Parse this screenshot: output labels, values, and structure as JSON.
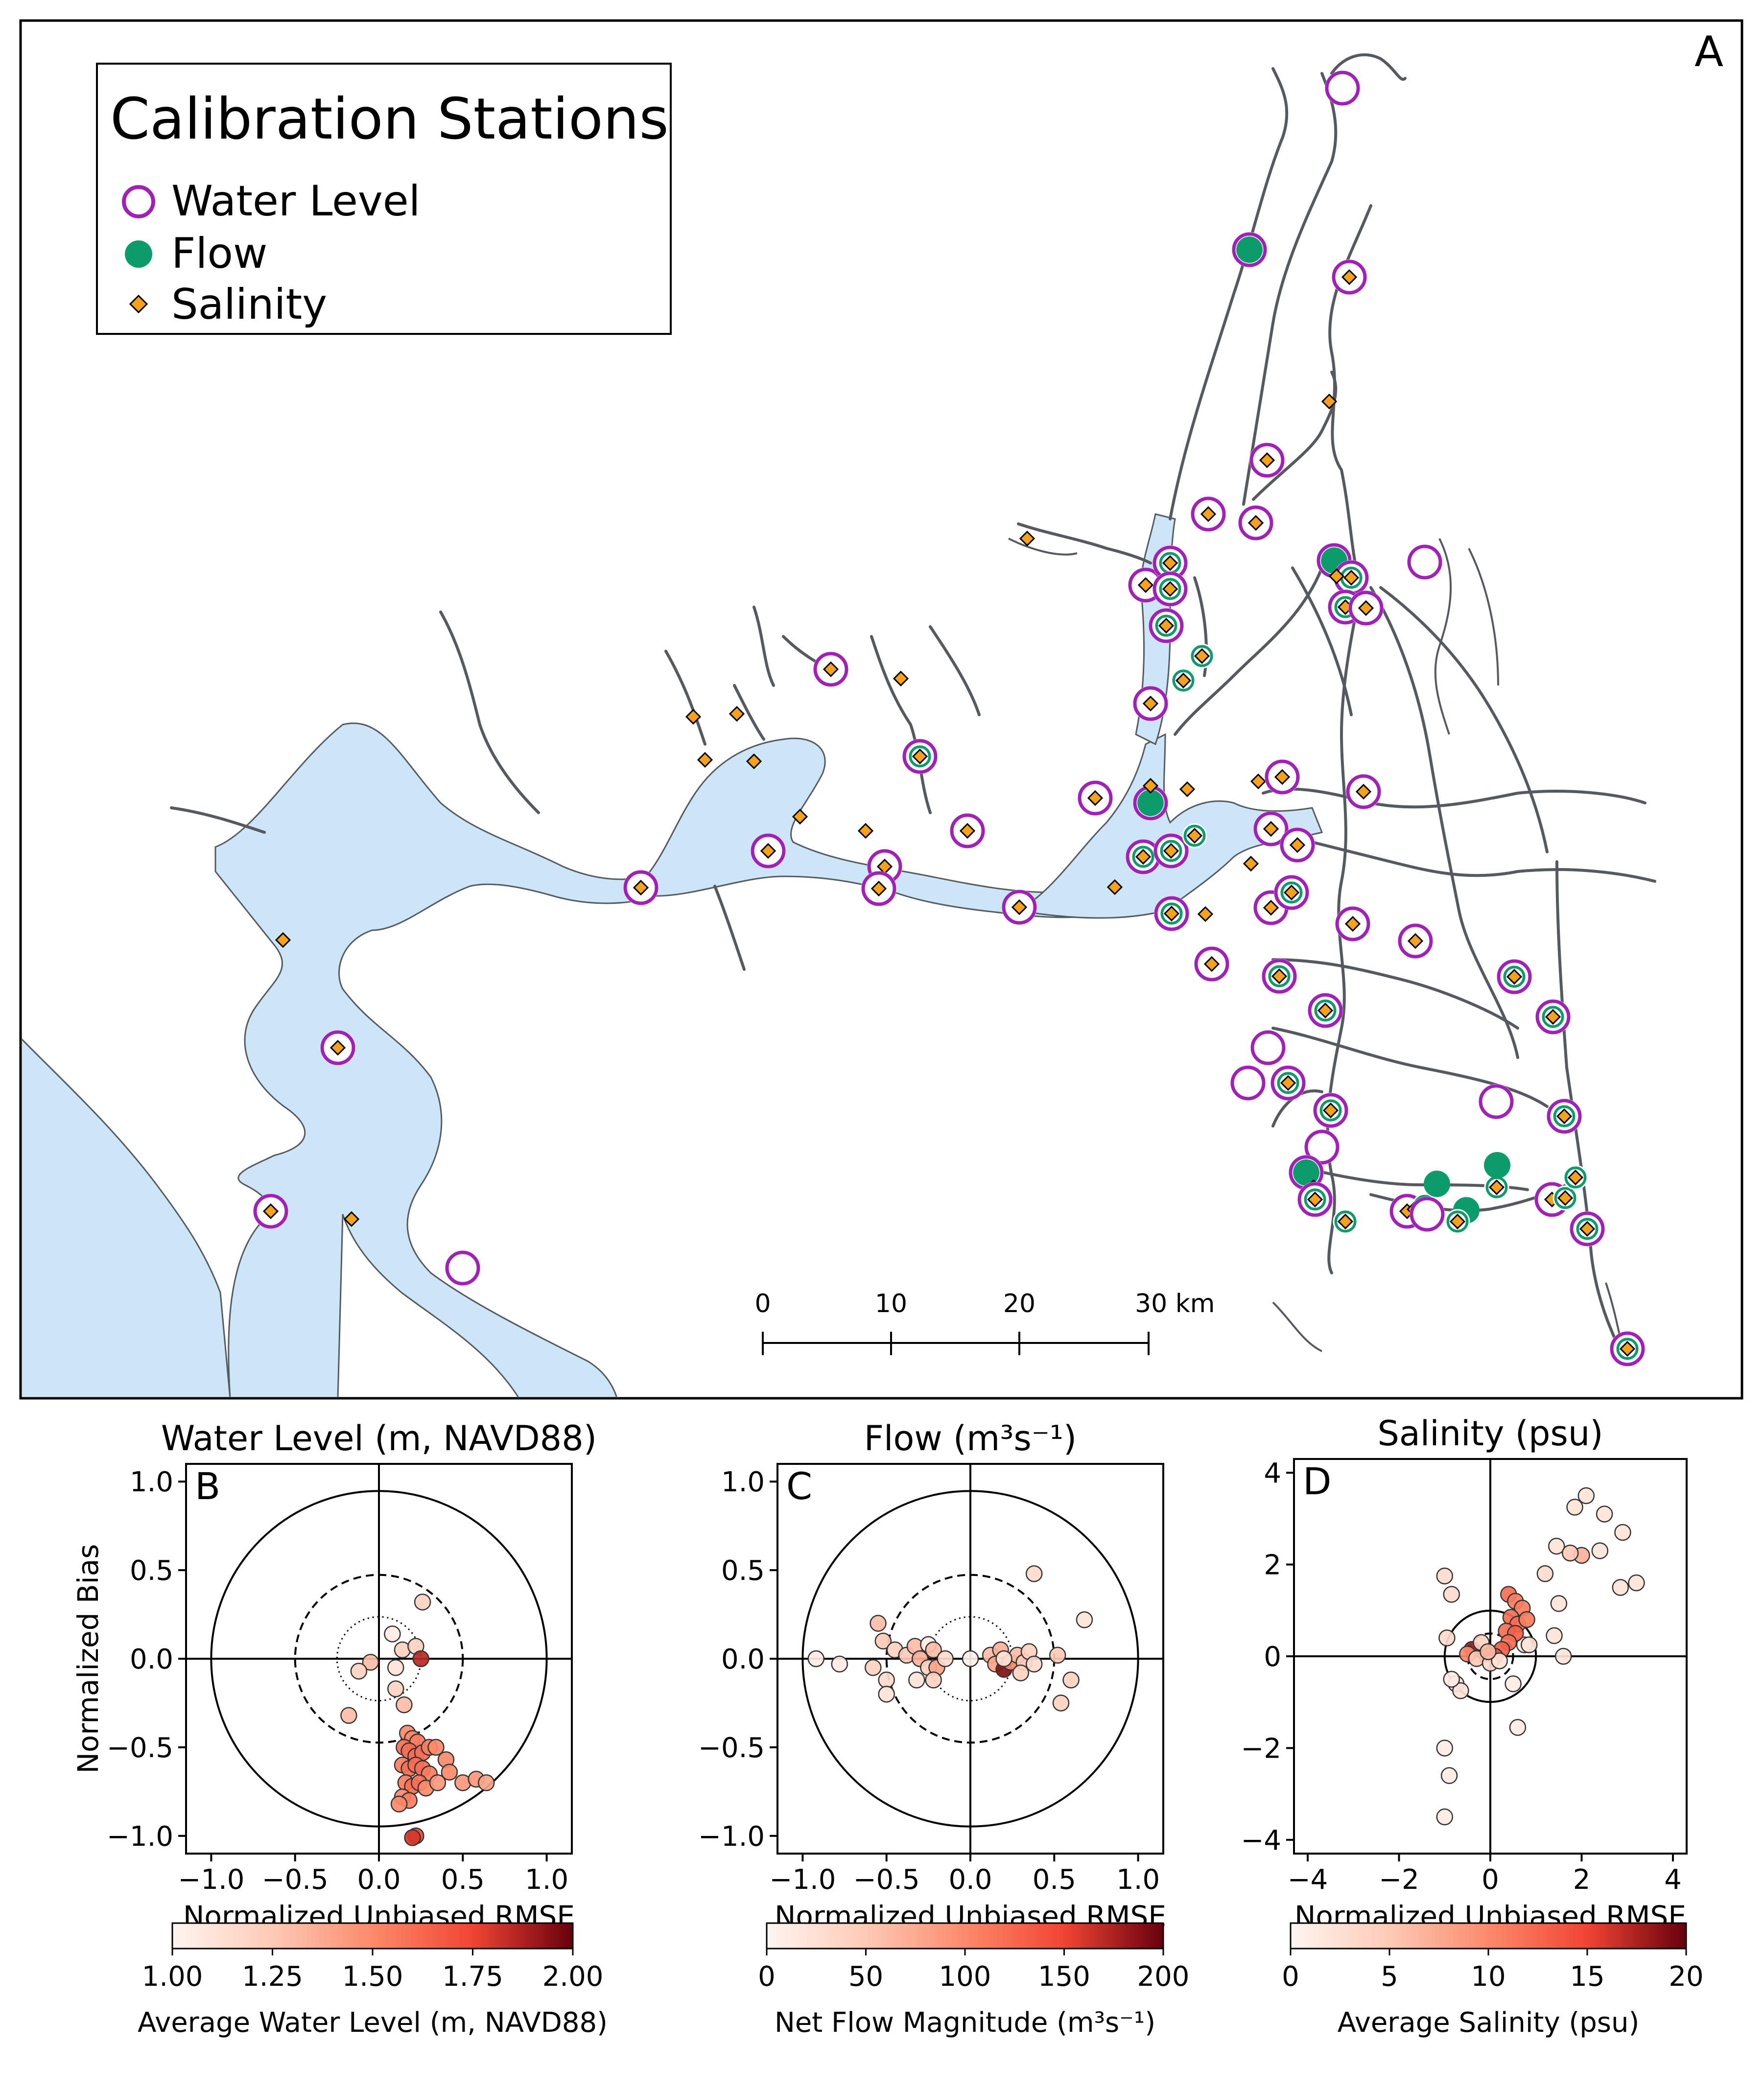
{
  "map": {
    "panel_label": "A",
    "legend": {
      "title": "Calibration Stations",
      "items": [
        {
          "label": "Water Level",
          "marker": "open-circle",
          "color": "#a020b8"
        },
        {
          "label": "Flow",
          "marker": "filled-circle",
          "color": "#0c9c6c"
        },
        {
          "label": "Salinity",
          "marker": "diamond",
          "color": "#f5a11a"
        }
      ]
    },
    "scalebar": {
      "ticks": [
        "0",
        "10",
        "20",
        "30 km"
      ]
    },
    "colors": {
      "water": "#cce6f8",
      "channel": "#555a60",
      "frame": "#000000"
    }
  },
  "chart_data": [
    {
      "type": "scatter",
      "panel_label": "B",
      "title": "Water Level (m, NAVD88)",
      "xlabel": "Normalized Unbiased RMSE",
      "ylabel": "Normalized Bias",
      "xlim": [
        -1.15,
        1.15
      ],
      "ylim": [
        -1.1,
        1.1
      ],
      "xticks": [
        "−1.0",
        "−0.5",
        "0.0",
        "0.5",
        "1.0"
      ],
      "yticks": [
        "1.0",
        "0.5",
        "0.0",
        "−0.5",
        "−1.0"
      ],
      "reference_circles": {
        "solid": 1.0,
        "dashed": 0.5,
        "dotted": 0.25
      },
      "colorbar": {
        "label": "Average Water Level (m, NAVD88)",
        "range": [
          1.0,
          2.0
        ],
        "ticks": [
          "1.00",
          "1.25",
          "1.50",
          "1.75",
          "2.00"
        ]
      },
      "points": [
        {
          "x": 0.08,
          "y": 0.14,
          "c": 1.05
        },
        {
          "x": 0.26,
          "y": 0.32,
          "c": 1.2
        },
        {
          "x": 0.14,
          "y": 0.05,
          "c": 1.2
        },
        {
          "x": 0.22,
          "y": 0.07,
          "c": 1.2
        },
        {
          "x": -0.05,
          "y": -0.02,
          "c": 1.3
        },
        {
          "x": -0.12,
          "y": -0.07,
          "c": 1.2
        },
        {
          "x": -0.18,
          "y": -0.32,
          "c": 1.3
        },
        {
          "x": 0.1,
          "y": -0.05,
          "c": 1.1
        },
        {
          "x": 0.25,
          "y": 0.0,
          "c": 1.85
        },
        {
          "x": 0.1,
          "y": -0.17,
          "c": 1.2
        },
        {
          "x": 0.15,
          "y": -0.26,
          "c": 1.3
        },
        {
          "x": 0.17,
          "y": -0.42,
          "c": 1.5
        },
        {
          "x": 0.2,
          "y": -0.45,
          "c": 1.5
        },
        {
          "x": 0.23,
          "y": -0.47,
          "c": 1.55
        },
        {
          "x": 0.15,
          "y": -0.5,
          "c": 1.6
        },
        {
          "x": 0.18,
          "y": -0.52,
          "c": 1.6
        },
        {
          "x": 0.22,
          "y": -0.55,
          "c": 1.6
        },
        {
          "x": 0.26,
          "y": -0.53,
          "c": 1.6
        },
        {
          "x": 0.3,
          "y": -0.5,
          "c": 1.55
        },
        {
          "x": 0.34,
          "y": -0.5,
          "c": 1.5
        },
        {
          "x": 0.14,
          "y": -0.6,
          "c": 1.55
        },
        {
          "x": 0.18,
          "y": -0.62,
          "c": 1.6
        },
        {
          "x": 0.22,
          "y": -0.6,
          "c": 1.6
        },
        {
          "x": 0.26,
          "y": -0.62,
          "c": 1.6
        },
        {
          "x": 0.3,
          "y": -0.65,
          "c": 1.55
        },
        {
          "x": 0.4,
          "y": -0.57,
          "c": 1.5
        },
        {
          "x": 0.42,
          "y": -0.64,
          "c": 1.5
        },
        {
          "x": 0.16,
          "y": -0.7,
          "c": 1.55
        },
        {
          "x": 0.2,
          "y": -0.72,
          "c": 1.6
        },
        {
          "x": 0.24,
          "y": -0.7,
          "c": 1.6
        },
        {
          "x": 0.28,
          "y": -0.73,
          "c": 1.5
        },
        {
          "x": 0.14,
          "y": -0.78,
          "c": 1.5
        },
        {
          "x": 0.18,
          "y": -0.8,
          "c": 1.55
        },
        {
          "x": 0.12,
          "y": -0.82,
          "c": 1.5
        },
        {
          "x": 0.35,
          "y": -0.7,
          "c": 1.45
        },
        {
          "x": 0.5,
          "y": -0.7,
          "c": 1.45
        },
        {
          "x": 0.58,
          "y": -0.68,
          "c": 1.45
        },
        {
          "x": 0.64,
          "y": -0.7,
          "c": 1.4
        },
        {
          "x": 0.22,
          "y": -1.0,
          "c": 1.75
        },
        {
          "x": 0.2,
          "y": -1.01,
          "c": 1.8
        }
      ]
    },
    {
      "type": "scatter",
      "panel_label": "C",
      "title": "Flow (m³s⁻¹)",
      "xlabel": "Normalized Unbiased RMSE",
      "ylabel": "",
      "xlim": [
        -1.15,
        1.15
      ],
      "ylim": [
        -1.1,
        1.1
      ],
      "xticks": [
        "−1.0",
        "−0.5",
        "0.0",
        "0.5",
        "1.0"
      ],
      "yticks": [
        "1.0",
        "0.5",
        "0.0",
        "−0.5",
        "−1.0"
      ],
      "reference_circles": {
        "solid": 1.0,
        "dashed": 0.5,
        "dotted": 0.25
      },
      "colorbar": {
        "label": "Net Flow Magnitude (m³s⁻¹)",
        "range": [
          0,
          200
        ],
        "ticks": [
          "0",
          "50",
          "100",
          "150",
          "200"
        ]
      },
      "points": [
        {
          "x": -0.92,
          "y": 0.0,
          "c": 10
        },
        {
          "x": -0.78,
          "y": -0.03,
          "c": 10
        },
        {
          "x": -0.55,
          "y": 0.2,
          "c": 60
        },
        {
          "x": -0.52,
          "y": 0.1,
          "c": 50
        },
        {
          "x": -0.58,
          "y": -0.05,
          "c": 40
        },
        {
          "x": -0.5,
          "y": -0.12,
          "c": 30
        },
        {
          "x": -0.5,
          "y": -0.2,
          "c": 20
        },
        {
          "x": -0.45,
          "y": 0.05,
          "c": 40
        },
        {
          "x": -0.38,
          "y": 0.02,
          "c": 50
        },
        {
          "x": -0.33,
          "y": 0.07,
          "c": 60
        },
        {
          "x": -0.3,
          "y": 0.0,
          "c": 70
        },
        {
          "x": -0.25,
          "y": 0.08,
          "c": 10
        },
        {
          "x": -0.25,
          "y": -0.05,
          "c": 40
        },
        {
          "x": -0.22,
          "y": 0.05,
          "c": 60
        },
        {
          "x": -0.2,
          "y": -0.05,
          "c": 80
        },
        {
          "x": -0.15,
          "y": 0.0,
          "c": 30
        },
        {
          "x": -0.32,
          "y": -0.12,
          "c": 20
        },
        {
          "x": -0.22,
          "y": -0.12,
          "c": 40
        },
        {
          "x": 0.0,
          "y": 0.0,
          "c": 5
        },
        {
          "x": 0.12,
          "y": 0.02,
          "c": 60
        },
        {
          "x": 0.15,
          "y": -0.03,
          "c": 80
        },
        {
          "x": 0.2,
          "y": -0.06,
          "c": 190
        },
        {
          "x": 0.24,
          "y": -0.02,
          "c": 100
        },
        {
          "x": 0.18,
          "y": 0.05,
          "c": 70
        },
        {
          "x": 0.28,
          "y": 0.02,
          "c": 60
        },
        {
          "x": 0.32,
          "y": -0.02,
          "c": 50
        },
        {
          "x": 0.35,
          "y": 0.04,
          "c": 40
        },
        {
          "x": 0.38,
          "y": -0.03,
          "c": 30
        },
        {
          "x": 0.3,
          "y": -0.08,
          "c": 40
        },
        {
          "x": 0.38,
          "y": 0.48,
          "c": 30
        },
        {
          "x": 0.52,
          "y": 0.02,
          "c": 50
        },
        {
          "x": 0.6,
          "y": -0.12,
          "c": 40
        },
        {
          "x": 0.68,
          "y": 0.22,
          "c": 20
        },
        {
          "x": 0.54,
          "y": -0.25,
          "c": 40
        },
        {
          "x": 0.2,
          "y": 0.0,
          "c": 20
        }
      ]
    },
    {
      "type": "scatter",
      "panel_label": "D",
      "title": "Salinity (psu)",
      "xlabel": "Normalized Unbiased RMSE",
      "ylabel": "",
      "xlim": [
        -4.3,
        4.3
      ],
      "ylim": [
        -4.3,
        4.3
      ],
      "xticks": [
        "−4",
        "−2",
        "0",
        "2",
        "4"
      ],
      "yticks": [
        "4",
        "2",
        "0",
        "−2",
        "−4"
      ],
      "reference_circles": {
        "solid": 1.0,
        "dashed": 0.5,
        "dotted": 0.25
      },
      "colorbar": {
        "label": "Average Salinity (psu)",
        "range": [
          0,
          20
        ],
        "ticks": [
          "0",
          "5",
          "10",
          "15",
          "20"
        ]
      },
      "points": [
        {
          "x": -1.0,
          "y": 1.75,
          "c": 3
        },
        {
          "x": -0.85,
          "y": 1.35,
          "c": 3
        },
        {
          "x": -0.95,
          "y": 0.4,
          "c": 3
        },
        {
          "x": -0.75,
          "y": -0.6,
          "c": 2
        },
        {
          "x": -0.65,
          "y": -0.75,
          "c": 2
        },
        {
          "x": -0.85,
          "y": -0.5,
          "c": 1
        },
        {
          "x": -1.0,
          "y": -2.0,
          "c": 1
        },
        {
          "x": -0.9,
          "y": -2.6,
          "c": 1
        },
        {
          "x": -1.0,
          "y": -3.5,
          "c": 1
        },
        {
          "x": 0.6,
          "y": -1.55,
          "c": 1
        },
        {
          "x": 0.75,
          "y": 0.25,
          "c": 1
        },
        {
          "x": 1.6,
          "y": 0.0,
          "c": 2
        },
        {
          "x": 1.4,
          "y": 0.45,
          "c": 2
        },
        {
          "x": 1.5,
          "y": 1.15,
          "c": 2
        },
        {
          "x": 1.2,
          "y": 1.8,
          "c": 3
        },
        {
          "x": 1.45,
          "y": 2.4,
          "c": 2
        },
        {
          "x": 2.1,
          "y": 3.5,
          "c": 2
        },
        {
          "x": 1.85,
          "y": 3.25,
          "c": 2
        },
        {
          "x": 2.5,
          "y": 3.1,
          "c": 2
        },
        {
          "x": 2.4,
          "y": 2.3,
          "c": 2
        },
        {
          "x": 2.0,
          "y": 2.2,
          "c": 7
        },
        {
          "x": 1.75,
          "y": 2.25,
          "c": 5
        },
        {
          "x": 2.9,
          "y": 2.7,
          "c": 2
        },
        {
          "x": 2.85,
          "y": 1.5,
          "c": 2
        },
        {
          "x": 3.2,
          "y": 1.6,
          "c": 2
        },
        {
          "x": 0.4,
          "y": 1.35,
          "c": 12
        },
        {
          "x": 0.55,
          "y": 1.2,
          "c": 11
        },
        {
          "x": 0.7,
          "y": 1.05,
          "c": 11
        },
        {
          "x": 0.45,
          "y": 0.85,
          "c": 12
        },
        {
          "x": 0.6,
          "y": 0.7,
          "c": 12
        },
        {
          "x": 0.8,
          "y": 0.8,
          "c": 11
        },
        {
          "x": 0.35,
          "y": 0.55,
          "c": 12
        },
        {
          "x": 0.55,
          "y": 0.5,
          "c": 13
        },
        {
          "x": 0.4,
          "y": 0.3,
          "c": 12
        },
        {
          "x": 0.25,
          "y": 0.15,
          "c": 13
        },
        {
          "x": 0.1,
          "y": 0.0,
          "c": 14
        },
        {
          "x": -0.1,
          "y": 0.05,
          "c": 15
        },
        {
          "x": -0.4,
          "y": 0.15,
          "c": 18
        },
        {
          "x": -0.5,
          "y": 0.05,
          "c": 10
        },
        {
          "x": -0.3,
          "y": -0.05,
          "c": 5
        },
        {
          "x": 0.0,
          "y": -0.15,
          "c": 3
        },
        {
          "x": 0.2,
          "y": -0.1,
          "c": 2
        },
        {
          "x": -0.2,
          "y": 0.3,
          "c": 4
        },
        {
          "x": 0.85,
          "y": 0.25,
          "c": 2
        },
        {
          "x": 0.5,
          "y": -0.6,
          "c": 1
        },
        {
          "x": -0.05,
          "y": 0.1,
          "c": 6
        }
      ]
    }
  ]
}
